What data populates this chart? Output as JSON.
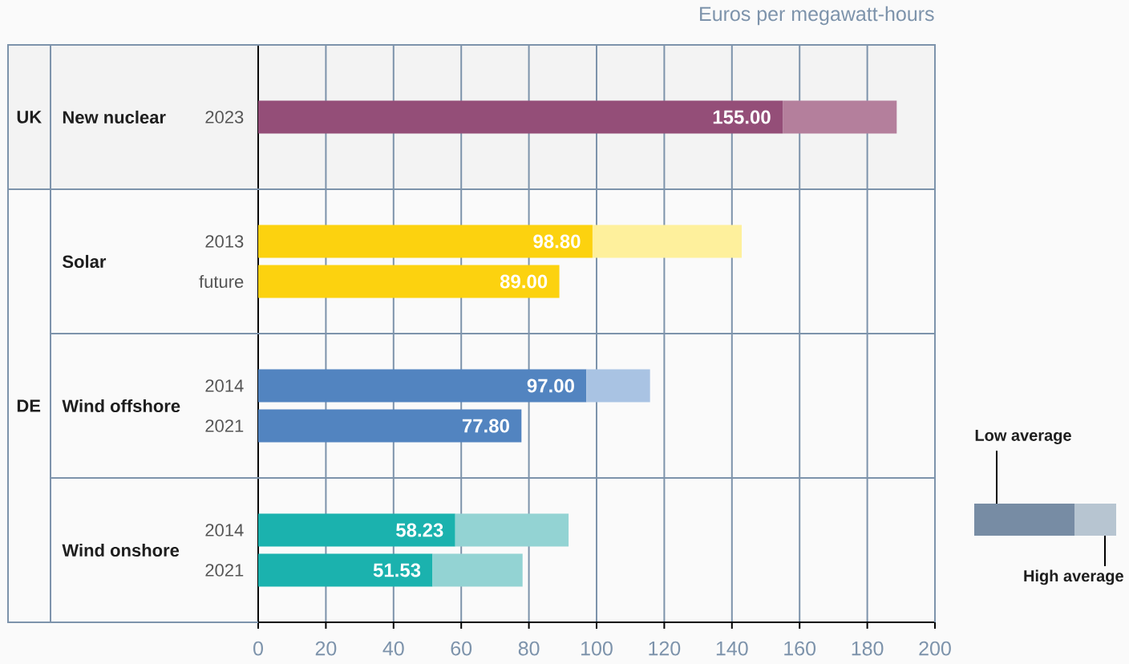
{
  "chart_data": {
    "type": "bar",
    "orientation": "horizontal",
    "stacked": true,
    "xlabel": "Euros per megawatt-hours",
    "categories": [
      "2023",
      "2013",
      "future",
      "2014",
      "2021",
      "2014",
      "2021"
    ],
    "series": [
      {
        "name": "Low average",
        "color": "#778ca4",
        "colors": [
          "#944e78",
          "#fcd20f",
          "#fcd20f",
          "#5284c0",
          "#5284c0",
          "#1bb2ae",
          "#1bb2ae"
        ],
        "values": [
          155,
          98.8,
          89,
          97,
          77.8,
          58.23,
          51.53
        ],
        "value_labels": [
          "155.00",
          "98.80",
          "89.00",
          "97.00",
          "77.80",
          "58.23",
          "51.53"
        ]
      },
      {
        "name": "High average",
        "color": "#b7c5d1",
        "colors": [
          "#b47f9c",
          "#fef09c",
          null,
          "#a9c3e3",
          null,
          "#93d3d3",
          "#93d3d3"
        ],
        "values": [
          33.7,
          44.1,
          null,
          18.8,
          null,
          33.5,
          26.6
        ]
      }
    ],
    "xlim": [
      0,
      200
    ],
    "xticks": [
      0,
      20,
      40,
      60,
      80,
      100,
      120,
      140,
      160,
      180,
      200
    ],
    "grid": "x",
    "legend": "right",
    "annotations": [
      "UK",
      "DE",
      "New nuclear",
      "Solar",
      "Wind offshore",
      "Wind onshore"
    ]
  }
}
